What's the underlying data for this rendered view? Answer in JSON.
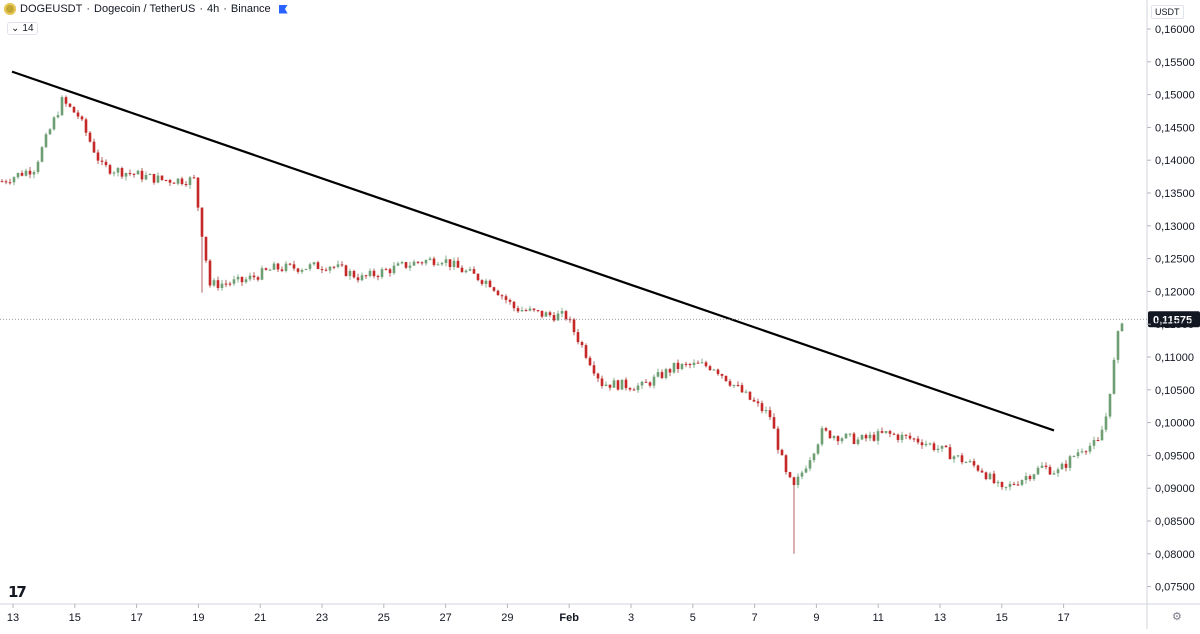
{
  "header": {
    "symbol": "DOGEUSDT",
    "sep1": "·",
    "name": "Dogecoin / TetherUS",
    "sep2": "·",
    "interval": "4h",
    "sep3": "·",
    "exchange": "Binance",
    "indicator_value": "14"
  },
  "currency_label": "USDT",
  "logo_text": "17",
  "colors": {
    "up": "#6e9e74",
    "down": "#c62828",
    "trendline": "#000000",
    "grid": "#d1d4dc",
    "text": "#131722",
    "price_tag_bg": "#131722"
  },
  "chart_data": {
    "type": "candlestick",
    "symbol": "DOGEUSDT",
    "interval": "4h",
    "ylim": [
      0.075,
      0.16
    ],
    "y_ticks": [
      "0,16000",
      "0,15500",
      "0,15000",
      "0,14500",
      "0,14000",
      "0,13500",
      "0,13000",
      "0,12500",
      "0,12000",
      "0,11500",
      "0,11000",
      "0,10500",
      "0,10000",
      "0,09500",
      "0,09000",
      "0,08500",
      "0,08000",
      "0,07500"
    ],
    "x_ticks": [
      "13",
      "15",
      "17",
      "19",
      "21",
      "23",
      "25",
      "27",
      "29",
      "Feb",
      "3",
      "5",
      "7",
      "9",
      "11",
      "13",
      "15",
      "17"
    ],
    "current_price": "0,11575",
    "trendline": {
      "start": 0.1535,
      "end": 0.0988
    },
    "path": [
      [
        0,
        0.1368
      ],
      [
        8,
        0.1388
      ],
      [
        15,
        0.149
      ],
      [
        19,
        0.1468
      ],
      [
        25,
        0.139
      ],
      [
        32,
        0.138
      ],
      [
        40,
        0.137
      ],
      [
        48,
        0.137
      ],
      [
        52,
        0.121
      ],
      [
        60,
        0.1215
      ],
      [
        68,
        0.1235
      ],
      [
        76,
        0.1237
      ],
      [
        82,
        0.124
      ],
      [
        90,
        0.122
      ],
      [
        96,
        0.1232
      ],
      [
        104,
        0.1245
      ],
      [
        110,
        0.125
      ],
      [
        114,
        0.1235
      ],
      [
        122,
        0.1213
      ],
      [
        128,
        0.1175
      ],
      [
        135,
        0.1165
      ],
      [
        141,
        0.1162
      ],
      [
        150,
        0.106
      ],
      [
        160,
        0.1055
      ],
      [
        168,
        0.1084
      ],
      [
        174,
        0.1088
      ],
      [
        178,
        0.1085
      ],
      [
        187,
        0.1035
      ],
      [
        192,
        0.101
      ],
      [
        196,
        0.092
      ],
      [
        198,
        0.09
      ],
      [
        205,
        0.0985
      ],
      [
        214,
        0.0973
      ],
      [
        221,
        0.0983
      ],
      [
        230,
        0.0972
      ],
      [
        236,
        0.0955
      ],
      [
        245,
        0.0928
      ],
      [
        250,
        0.0895
      ],
      [
        253,
        0.0908
      ],
      [
        260,
        0.0932
      ],
      [
        264,
        0.0925
      ],
      [
        270,
        0.0962
      ],
      [
        274,
        0.0968
      ],
      [
        276,
        0.101
      ],
      [
        279,
        0.1132
      ],
      [
        280,
        0.1158
      ]
    ]
  }
}
